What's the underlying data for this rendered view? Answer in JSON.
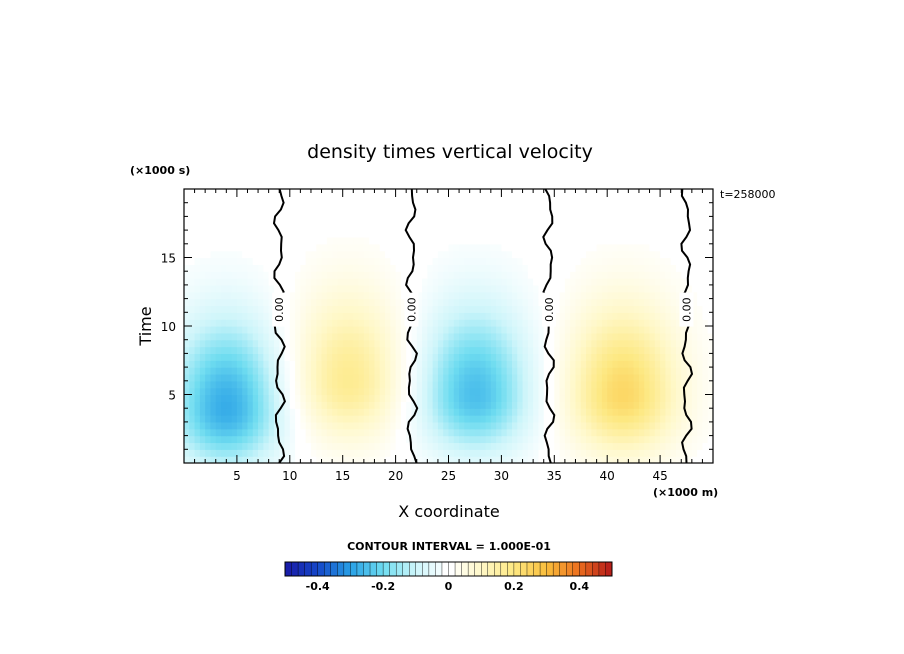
{
  "chart_data": {
    "type": "heatmap",
    "title": "density times vertical velocity",
    "xlabel": "X coordinate",
    "ylabel": "Time",
    "x_unit": "(×1000 m)",
    "y_unit": "(×1000 s)",
    "time_label": "t=258000",
    "xlim": [
      0,
      50
    ],
    "ylim": [
      0,
      20
    ],
    "x_ticks": [
      5,
      10,
      15,
      20,
      25,
      30,
      35,
      40,
      45
    ],
    "y_ticks": [
      5,
      10,
      15
    ],
    "contour_interval_label": "CONTOUR INTERVAL = 1.000E-01",
    "zero_contour_labels": [
      "0.00",
      "0.00",
      "0.00",
      "0.00"
    ],
    "zero_contours_x": [
      9.0,
      21.5,
      34.5,
      47.5
    ],
    "colorbar": {
      "range": [
        -0.5,
        0.5
      ],
      "tick_values": [
        -0.4,
        -0.2,
        0,
        0.2,
        0.4
      ],
      "tick_labels": [
        "-0.4",
        "-0.2",
        "0",
        "0.2",
        "0.4"
      ],
      "low_color": "#1a1aa6",
      "mid_color": "#ffffff",
      "high_color": "#b3181a"
    },
    "cells": [
      {
        "x_center": 4,
        "y_center": 4,
        "sign": -1,
        "peak": 0.28
      },
      {
        "x_center": 15.5,
        "y_center": 6,
        "sign": 1,
        "peak": 0.18
      },
      {
        "x_center": 27.5,
        "y_center": 5,
        "sign": -1,
        "peak": 0.25
      },
      {
        "x_center": 41.5,
        "y_center": 5,
        "sign": 1,
        "peak": 0.24
      }
    ]
  }
}
